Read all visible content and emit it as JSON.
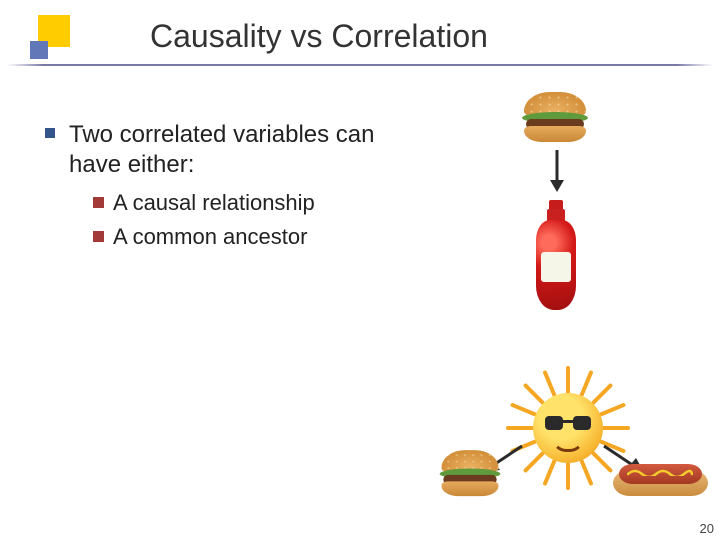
{
  "title": "Causality vs Correlation",
  "bullet": {
    "main": "Two correlated variables can have either:",
    "subs": [
      "A causal relationship",
      "A common ancestor"
    ]
  },
  "page_number": "20",
  "colors": {
    "title_text": "#333333",
    "underline": "#7a7aa8",
    "main_bullet": "#33558b",
    "sub_bullet": "#a33a3a",
    "decoration_yellow": "#ffcc00",
    "decoration_blue": "#6277b8",
    "arrow": "#2b2b2b",
    "sun_ray": "#f5a623"
  },
  "graphics": {
    "top_diagram": {
      "from": "burger",
      "to": "ketchup",
      "relation": "causal"
    },
    "bottom_diagram": {
      "ancestor": "sun",
      "children": [
        "burger",
        "hotdog"
      ],
      "relation": "common-ancestor"
    }
  }
}
